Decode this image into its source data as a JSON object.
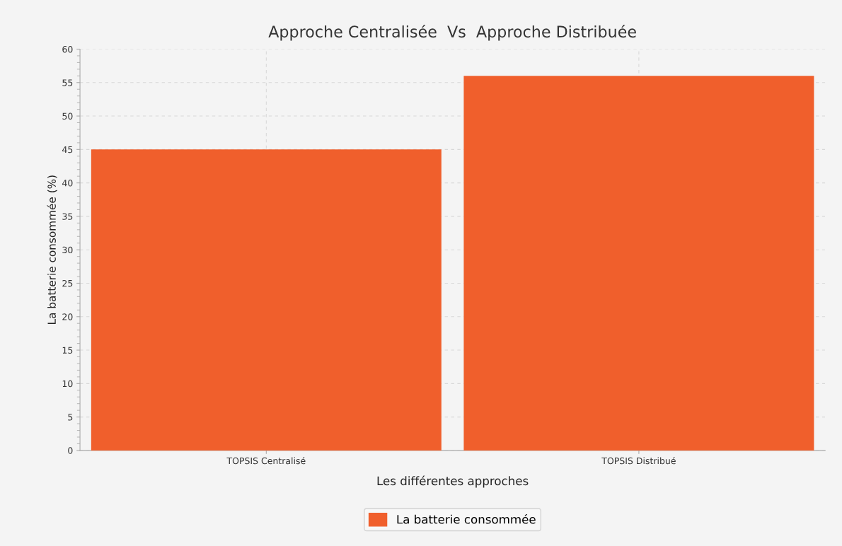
{
  "chart_data": {
    "type": "bar",
    "title": "Approche Centralisée  Vs  Approche Distribuée",
    "xlabel": "Les différentes approches",
    "ylabel": "La batterie consommée (%)",
    "categories": [
      "TOPSIS Centralisé",
      "TOPSIS Distribué"
    ],
    "series": [
      {
        "name": "La batterie consommée",
        "color": "#f05f2c",
        "values": [
          45,
          56
        ]
      }
    ],
    "ylim": [
      0,
      60
    ],
    "yticks": [
      0,
      5,
      10,
      15,
      20,
      25,
      30,
      35,
      40,
      45,
      50,
      55,
      60
    ],
    "grid": true,
    "legend": "bottom"
  }
}
